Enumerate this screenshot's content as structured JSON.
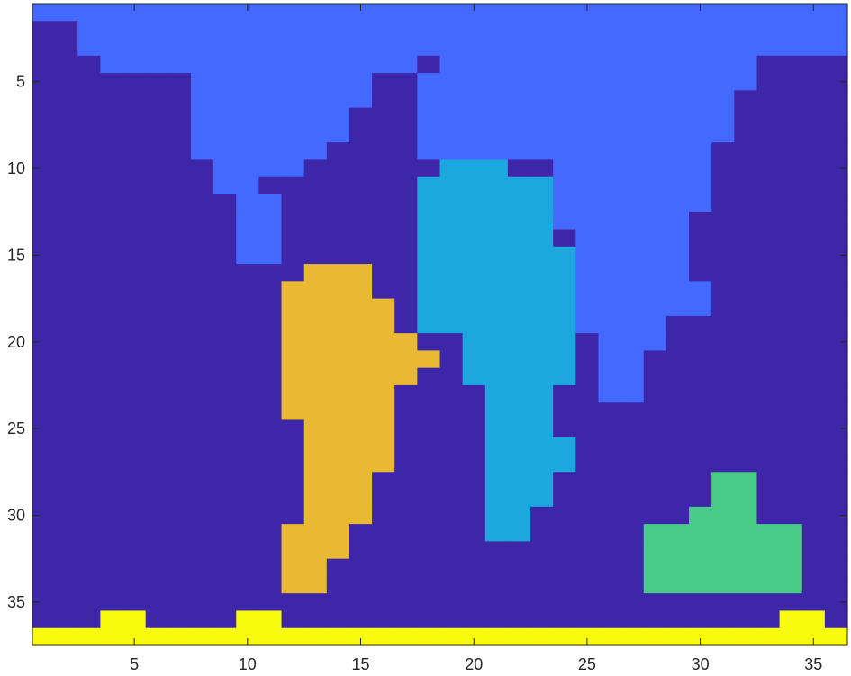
{
  "chart_data": {
    "type": "heatmap",
    "description_colormap": "parula",
    "cols": 36,
    "rows": 37,
    "colors": {
      "0": "#3e26a8",
      "1": "#4469ff",
      "2": "#1ca8df",
      "3": "#eab934",
      "4": "#48cb86",
      "5": "#f9fb0e"
    },
    "axis_color": "#262626",
    "x_ticks": [
      5,
      10,
      15,
      20,
      25,
      30,
      35
    ],
    "y_ticks": [
      5,
      10,
      15,
      20,
      25,
      30,
      35
    ],
    "grid": [
      "111111111111111111111111111111111111",
      "001111111111111111111111111111111111",
      "001111111111111111111111111111111111",
      "000111111111111110111111111111110000",
      "000000011111111001111111111111110000",
      "000000011111111001111111111111100000",
      "000000011111110001111111111111100000",
      "000000011111110001111111111111100000",
      "000000011111100001111111111111000000",
      "000000001111000000222001111111000000",
      "000000001100000002222221111111000000",
      "000000000110000002222221111111000000",
      "000000000110000002222221111110000000",
      "000000000110000002222220111110000000",
      "000000000110000002222222111110000000",
      "000000000000333002222222111110000000",
      "000000000003333002222222111111000000",
      "000000000003333302222222111111000000",
      "000000000003333302222222111100000000",
      "000000000003333330022222011100000000",
      "000000000003333333022222011000000000",
      "000000000003333330022222011000000000",
      "000000000003333300002220011000000000",
      "000000000003333300002220000000000000",
      "000000000000333300002220000000000000",
      "000000000000333300002222000000000000",
      "000000000000333300002222000000000000",
      "000000000000333000002220000000440000",
      "000000000000333000002220000000440000",
      "000000000000333000002200000004440000",
      "000000000003330000002200000444444400",
      "000000000003330000000000000444444400",
      "000000000003300000000000000444444400",
      "000000000003300000000000000444444400",
      "000000000000000000000000000000000000",
      "000550000550000000000000000000000550",
      "555555555555555555555555555555555555"
    ]
  }
}
